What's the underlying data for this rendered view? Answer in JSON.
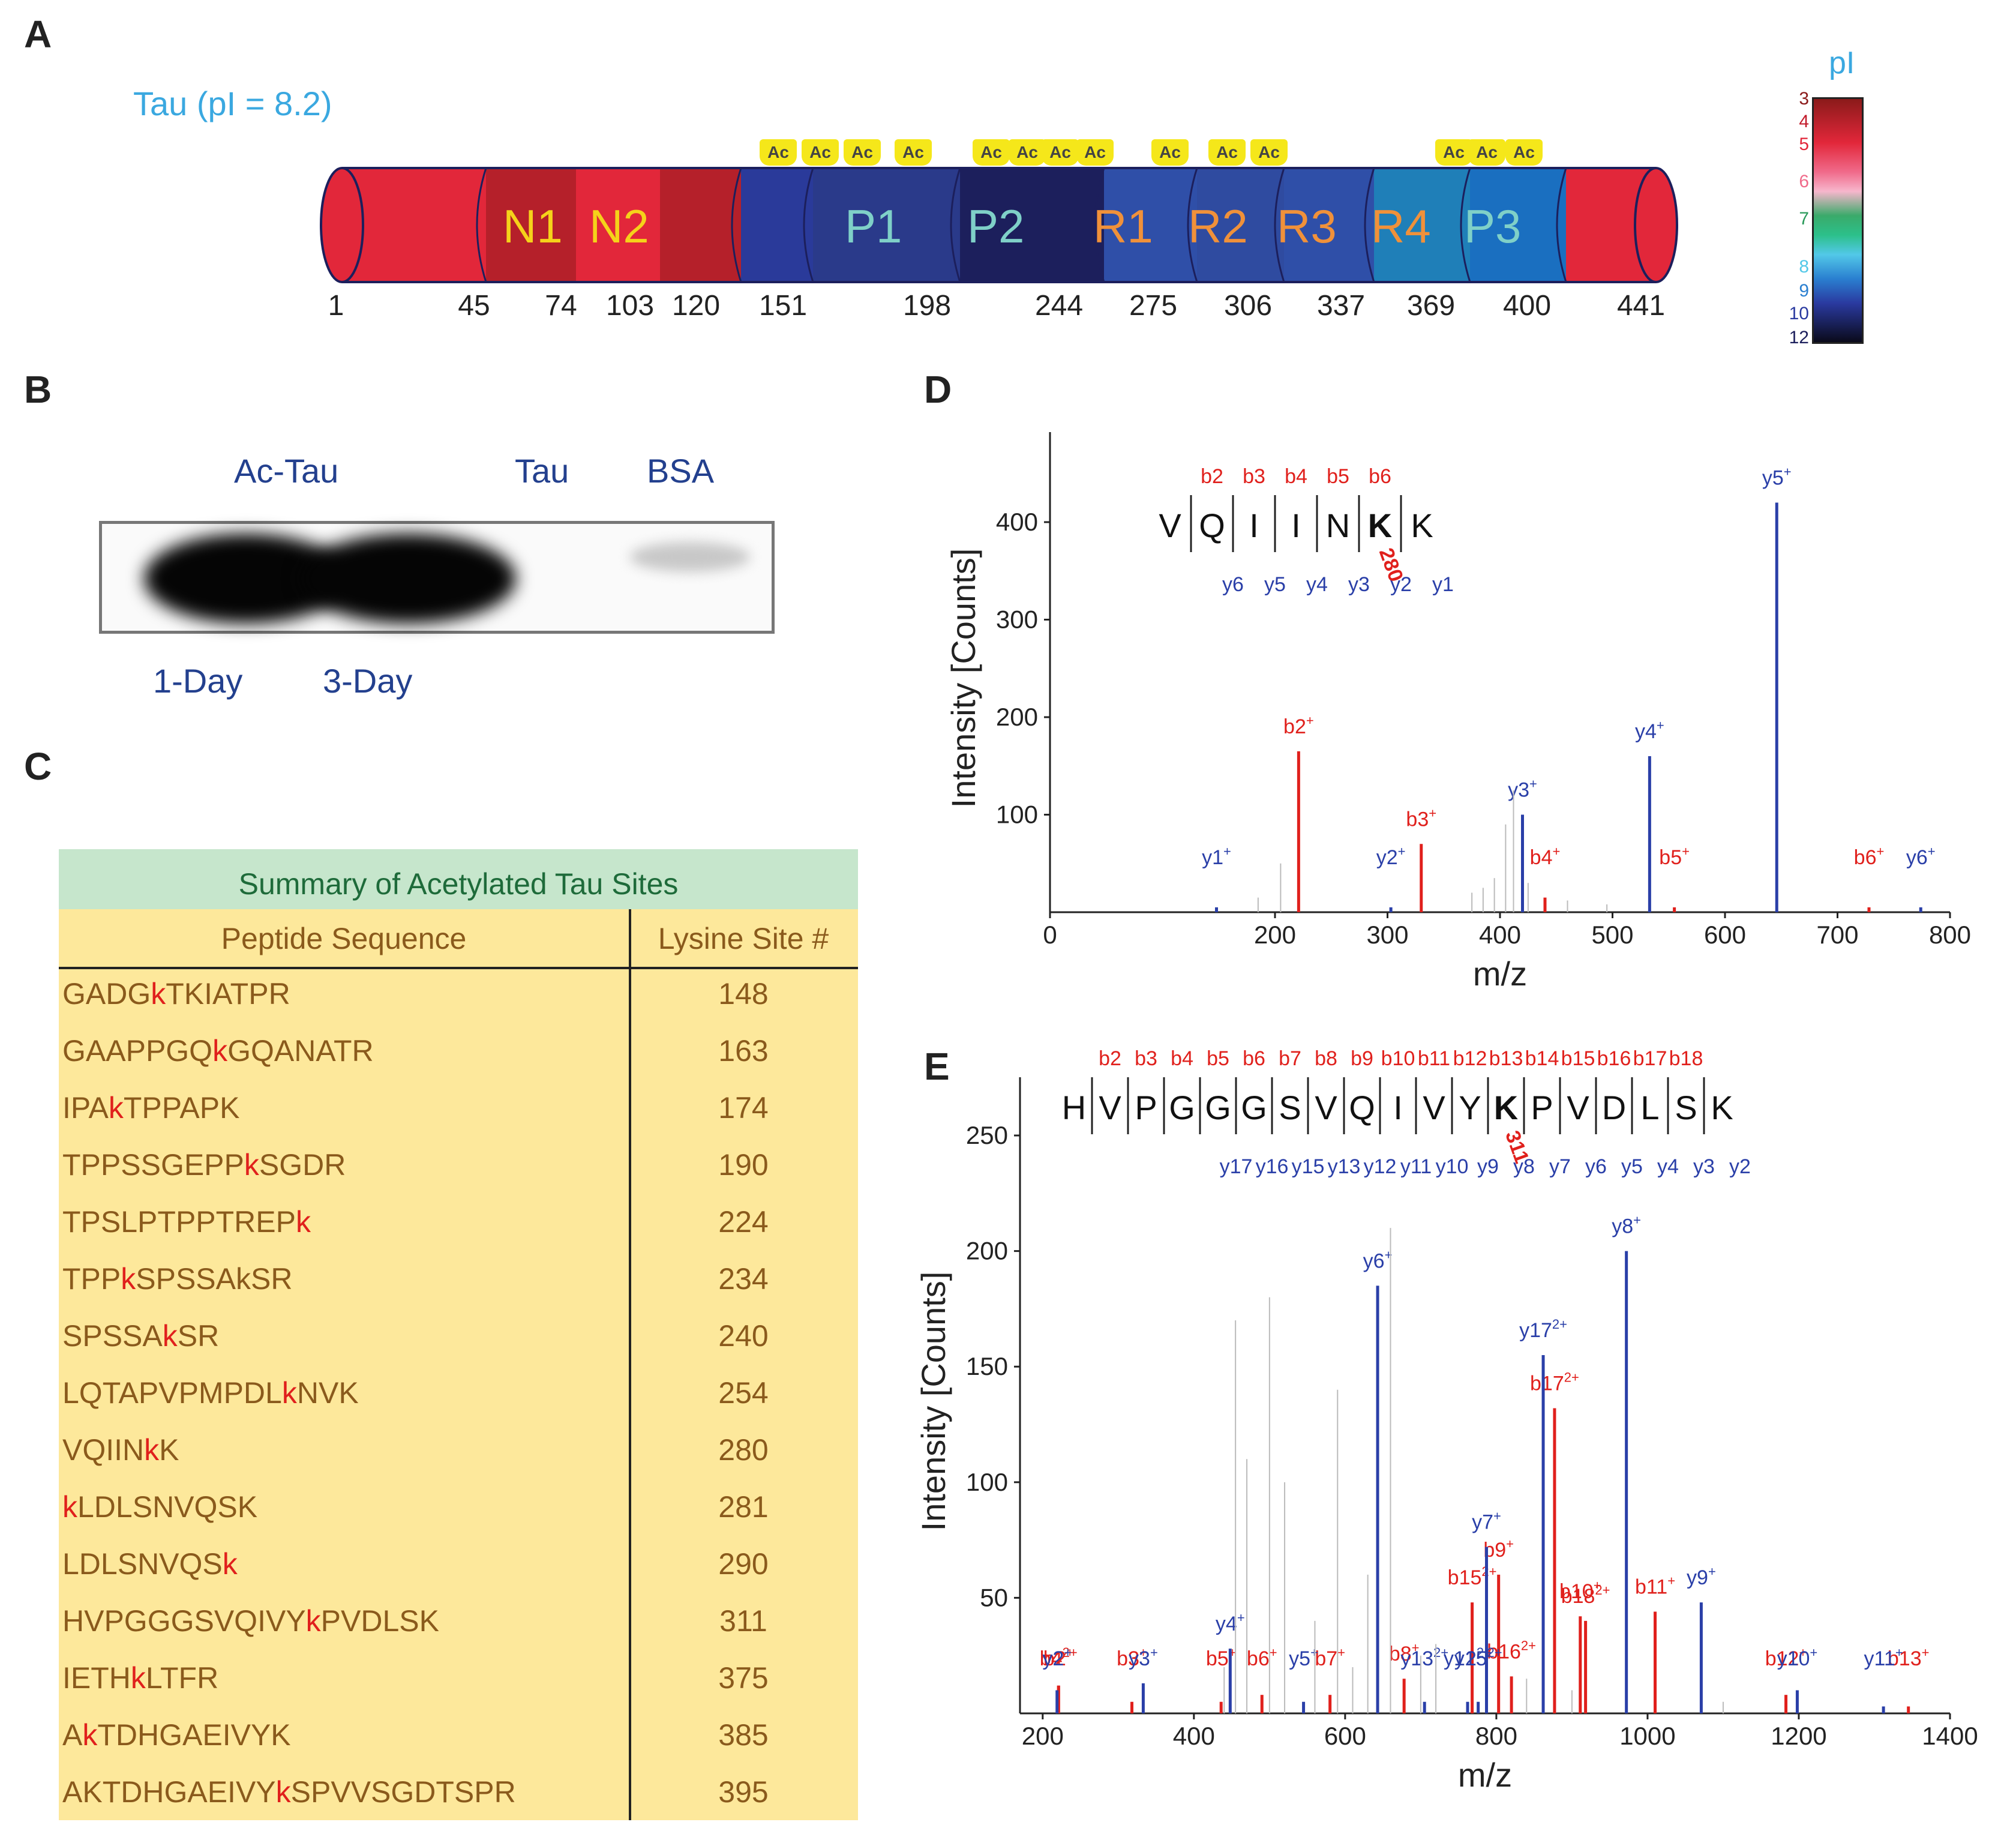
{
  "panels": {
    "a": "A",
    "b": "B",
    "c": "C",
    "d": "D",
    "e": "E"
  },
  "panel_a": {
    "title": "Tau (pI = 8.2)",
    "ac_label": "Ac",
    "domains": [
      "N1",
      "N2",
      "P1",
      "P2",
      "R1",
      "R2",
      "R3",
      "R4",
      "P3"
    ],
    "positions": [
      "1",
      "45",
      "74",
      "103",
      "120",
      "151",
      "198",
      "244",
      "275",
      "306",
      "337",
      "369",
      "400",
      "441"
    ],
    "pi_scale_title": "pI",
    "pi_ticks": [
      "3",
      "4",
      "5",
      "6",
      "7",
      "8",
      "9",
      "10",
      "12"
    ],
    "colors": {
      "red": "#e2273a",
      "darkred": "#b5202a",
      "blue": "#2a3a9a",
      "navy": "#1c1f5c",
      "midblue": "#2f4fa8",
      "teal": "#1f7fb8"
    }
  },
  "panel_b": {
    "top_labels": [
      "Ac-Tau",
      "Tau",
      "BSA"
    ],
    "bottom_labels": [
      "1-Day",
      "3-Day"
    ]
  },
  "panel_c": {
    "table_title": "Summary of Acetylated Tau Sites",
    "col_headers": [
      "Peptide Sequence",
      "Lysine Site #"
    ],
    "rows": [
      {
        "pre": "GADG",
        "k": "k",
        "post": "TKIATPR",
        "site": "148"
      },
      {
        "pre": "GAAPPGQ",
        "k": "k",
        "post": "GQANATR",
        "site": "163"
      },
      {
        "pre": "IPA",
        "k": "k",
        "post": "TPPAPK",
        "site": "174"
      },
      {
        "pre": "TPPSSGEPP",
        "k": "k",
        "post": "SGDR",
        "site": "190"
      },
      {
        "pre": "TPSLPTPPTREP",
        "k": "k",
        "post": "",
        "site": "224"
      },
      {
        "pre": "TPP",
        "k": "k",
        "post": "SPSSAkSR",
        "site": "234"
      },
      {
        "pre": "SPSSA",
        "k": "k",
        "post": "SR",
        "site": "240"
      },
      {
        "pre": "LQTAPVPMPDL",
        "k": "k",
        "post": "NVK",
        "site": "254"
      },
      {
        "pre": "VQIIN",
        "k": "k",
        "post": "K",
        "site": "280"
      },
      {
        "pre": "",
        "k": "k",
        "post": "LDLSNVQSK",
        "site": "281"
      },
      {
        "pre": "LDLSNVQS",
        "k": "k",
        "post": "",
        "site": "290"
      },
      {
        "pre": "HVPGGGSVQIVY",
        "k": "k",
        "post": "PVDLSK",
        "site": "311"
      },
      {
        "pre": "IETH",
        "k": "k",
        "post": "LTFR",
        "site": "375"
      },
      {
        "pre": "A",
        "k": "k",
        "post": "TDHGAEIVYK",
        "site": "385"
      },
      {
        "pre": "AKTDHGAEIVY",
        "k": "k",
        "post": "SPVVSGDTSPR",
        "site": "395"
      }
    ]
  },
  "chart_data": [
    {
      "id": "D",
      "type": "bar",
      "xlabel": "m/z",
      "ylabel": "Intensity [Counts]",
      "xlim": [
        0,
        800
      ],
      "ylim": [
        0,
        480
      ],
      "xticks": [
        "0",
        "200",
        "300",
        "400",
        "500",
        "600",
        "700",
        "800"
      ],
      "yticks": [
        "100",
        "200",
        "300",
        "400"
      ],
      "sequence": [
        "V",
        "Q",
        "I",
        "I",
        "N",
        "K",
        "K"
      ],
      "site_label": "280",
      "b_labels": [
        "b2",
        "b3",
        "b4",
        "b5",
        "b6"
      ],
      "y_labels": [
        "y6",
        "y5",
        "y4",
        "y3",
        "y2",
        "y1"
      ],
      "series": [
        {
          "name": "b ions",
          "color": "#e0201c",
          "peaks": [
            {
              "mz": 221,
              "intensity": 165,
              "label": "b2",
              "charge": "+"
            },
            {
              "mz": 330,
              "intensity": 70,
              "label": "b3",
              "charge": "+"
            },
            {
              "mz": 440,
              "intensity": 15,
              "label": "b4",
              "charge": "+"
            },
            {
              "mz": 555,
              "intensity": 5,
              "label": "b5",
              "charge": "+"
            },
            {
              "mz": 728,
              "intensity": 5,
              "label": "b6",
              "charge": "+"
            }
          ]
        },
        {
          "name": "y ions",
          "color": "#2a3fa8",
          "peaks": [
            {
              "mz": 148,
              "intensity": 5,
              "label": "y1",
              "charge": "+"
            },
            {
              "mz": 303,
              "intensity": 5,
              "label": "y2",
              "charge": "+"
            },
            {
              "mz": 420,
              "intensity": 100,
              "label": "y3",
              "charge": "+"
            },
            {
              "mz": 533,
              "intensity": 160,
              "label": "y4",
              "charge": "+"
            },
            {
              "mz": 646,
              "intensity": 420,
              "label": "y5",
              "charge": "+"
            },
            {
              "mz": 774,
              "intensity": 5,
              "label": "y6",
              "charge": "+"
            }
          ]
        },
        {
          "name": "unassigned",
          "color": "#bbbbbb",
          "peaks": [
            {
              "mz": 185,
              "intensity": 15
            },
            {
              "mz": 205,
              "intensity": 50
            },
            {
              "mz": 375,
              "intensity": 20
            },
            {
              "mz": 385,
              "intensity": 25
            },
            {
              "mz": 395,
              "intensity": 35
            },
            {
              "mz": 405,
              "intensity": 90
            },
            {
              "mz": 412,
              "intensity": 125
            },
            {
              "mz": 425,
              "intensity": 30
            },
            {
              "mz": 460,
              "intensity": 12
            },
            {
              "mz": 495,
              "intensity": 8
            }
          ]
        }
      ]
    },
    {
      "id": "E",
      "type": "bar",
      "xlabel": "m/z",
      "ylabel": "Intensity [Counts]",
      "xlim": [
        170,
        1400
      ],
      "ylim": [
        0,
        270
      ],
      "xticks": [
        "200",
        "400",
        "600",
        "800",
        "1000",
        "1200",
        "1400"
      ],
      "yticks": [
        "50",
        "100",
        "150",
        "200",
        "250"
      ],
      "sequence": [
        "H",
        "V",
        "P",
        "G",
        "G",
        "G",
        "S",
        "V",
        "Q",
        "I",
        "V",
        "Y",
        "K",
        "P",
        "V",
        "D",
        "L",
        "S",
        "K"
      ],
      "site_label": "311",
      "b_labels": [
        "b2",
        "b3",
        "b4",
        "b5",
        "b6",
        "b7",
        "b8",
        "b9",
        "b10",
        "b11",
        "b12",
        "b13",
        "b14",
        "b15",
        "b16",
        "b17",
        "b18"
      ],
      "y_labels": [
        "y17",
        "y16",
        "y15",
        "y13",
        "y12",
        "y11",
        "y10",
        "y9",
        "y8",
        "y7",
        "y6",
        "y5",
        "y4",
        "y3",
        "y2"
      ],
      "series": [
        {
          "name": "b ions",
          "color": "#e0201c",
          "peaks": [
            {
              "mz": 221,
              "intensity": 12,
              "label": "b2",
              "charge": "+"
            },
            {
              "mz": 221,
              "intensity": 12,
              "label": "b4",
              "charge": "2+"
            },
            {
              "mz": 318,
              "intensity": 5,
              "label": "b3",
              "charge": "+"
            },
            {
              "mz": 436,
              "intensity": 5,
              "label": "b5",
              "charge": "+"
            },
            {
              "mz": 490,
              "intensity": 8,
              "label": "b6",
              "charge": "+"
            },
            {
              "mz": 580,
              "intensity": 8,
              "label": "b7",
              "charge": "+"
            },
            {
              "mz": 678,
              "intensity": 15,
              "label": "b8",
              "charge": "+"
            },
            {
              "mz": 768,
              "intensity": 48,
              "label": "b15",
              "charge": "2+"
            },
            {
              "mz": 803,
              "intensity": 60,
              "label": "b9",
              "charge": "+"
            },
            {
              "mz": 820,
              "intensity": 16,
              "label": "b16",
              "charge": "2+"
            },
            {
              "mz": 877,
              "intensity": 132,
              "label": "b17",
              "charge": "2+"
            },
            {
              "mz": 911,
              "intensity": 42,
              "label": "b10",
              "charge": "+"
            },
            {
              "mz": 918,
              "intensity": 40,
              "label": "b18",
              "charge": "2+"
            },
            {
              "mz": 1010,
              "intensity": 44,
              "label": "b11",
              "charge": "+"
            },
            {
              "mz": 1183,
              "intensity": 8,
              "label": "b12",
              "charge": "+"
            },
            {
              "mz": 1345,
              "intensity": 3,
              "label": "b13",
              "charge": "+"
            }
          ]
        },
        {
          "name": "y ions",
          "color": "#2a3fa8",
          "peaks": [
            {
              "mz": 219,
              "intensity": 10,
              "label": "y2",
              "charge": "+"
            },
            {
              "mz": 333,
              "intensity": 13,
              "label": "y3",
              "charge": "+"
            },
            {
              "mz": 448,
              "intensity": 28,
              "label": "y4",
              "charge": "+"
            },
            {
              "mz": 545,
              "intensity": 5,
              "label": "y5",
              "charge": "+"
            },
            {
              "mz": 643,
              "intensity": 185,
              "label": "y6",
              "charge": "+"
            },
            {
              "mz": 705,
              "intensity": 5,
              "label": "y13",
              "charge": "2+"
            },
            {
              "mz": 762,
              "intensity": 5,
              "label": "y12",
              "charge": "2+"
            },
            {
              "mz": 776,
              "intensity": 5,
              "label": "y15",
              "charge": "2+"
            },
            {
              "mz": 787,
              "intensity": 72,
              "label": "y7",
              "charge": "+"
            },
            {
              "mz": 862,
              "intensity": 155,
              "label": "y17",
              "charge": "2+"
            },
            {
              "mz": 972,
              "intensity": 200,
              "label": "y8",
              "charge": "+"
            },
            {
              "mz": 1071,
              "intensity": 48,
              "label": "y9",
              "charge": "+"
            },
            {
              "mz": 1198,
              "intensity": 10,
              "label": "y10",
              "charge": "+"
            },
            {
              "mz": 1312,
              "intensity": 3,
              "label": "y11",
              "charge": "+"
            }
          ]
        },
        {
          "name": "unassigned",
          "color": "#bbbbbb",
          "peaks": [
            {
              "mz": 440,
              "intensity": 20
            },
            {
              "mz": 455,
              "intensity": 170
            },
            {
              "mz": 470,
              "intensity": 110
            },
            {
              "mz": 500,
              "intensity": 180
            },
            {
              "mz": 520,
              "intensity": 100
            },
            {
              "mz": 560,
              "intensity": 40
            },
            {
              "mz": 590,
              "intensity": 140
            },
            {
              "mz": 610,
              "intensity": 20
            },
            {
              "mz": 630,
              "intensity": 60
            },
            {
              "mz": 660,
              "intensity": 210
            },
            {
              "mz": 700,
              "intensity": 25
            },
            {
              "mz": 720,
              "intensity": 30
            },
            {
              "mz": 840,
              "intensity": 15
            },
            {
              "mz": 900,
              "intensity": 10
            },
            {
              "mz": 1100,
              "intensity": 5
            }
          ]
        }
      ]
    }
  ]
}
